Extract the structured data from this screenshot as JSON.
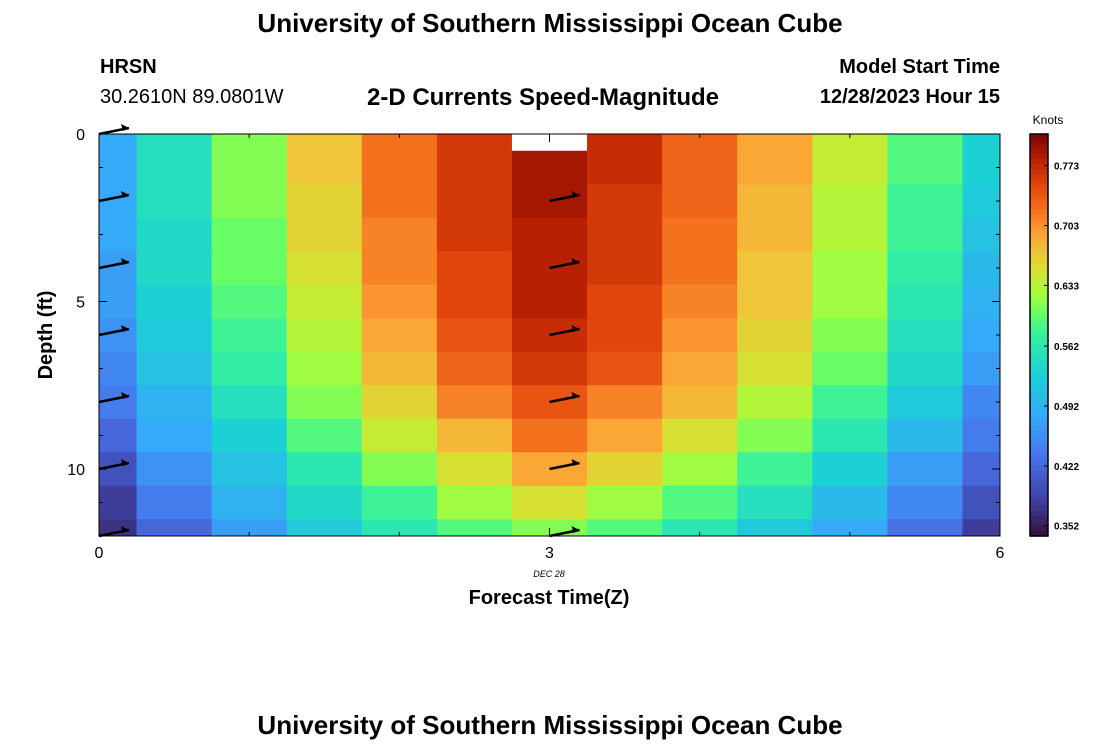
{
  "header": {
    "title_top": "University of Southern Mississippi Ocean Cube",
    "title_bottom": "University of Southern Mississippi Ocean Cube",
    "station": "HRSN",
    "coords": "30.2610N  89.0801W",
    "subtitle": "2-D Currents Speed-Magnitude",
    "model_start_label": "Model Start Time",
    "model_start_value": "12/28/2023 Hour 15"
  },
  "colors": {
    "arrow": "#000000",
    "missing": "#ffffff"
  },
  "chart_data": {
    "type": "heatmap",
    "xlabel": "Forecast Time(Z)",
    "ylabel": "Depth (ft)",
    "x_date_label": "DEC 28",
    "colorbar_label": "Knots",
    "colorbar_ticks": [
      "0.773",
      "0.703",
      "0.633",
      "0.562",
      "0.492",
      "0.422",
      "0.352"
    ],
    "colorbar_range": [
      0.34,
      0.81
    ],
    "xlim": [
      0,
      6
    ],
    "ylim": [
      0,
      12
    ],
    "y_inverted": true,
    "x_ticks": [
      "0",
      "3",
      "6"
    ],
    "y_ticks": [
      "0",
      "5",
      "10"
    ],
    "x": [
      0,
      0.5,
      1,
      1.5,
      2,
      2.5,
      3,
      3.5,
      4,
      4.5,
      5,
      5.5,
      6
    ],
    "depth": [
      0,
      1,
      2,
      3,
      4,
      5,
      6,
      7,
      8,
      9,
      10,
      11,
      12
    ],
    "values": [
      [
        0.48,
        0.55,
        0.61,
        0.67,
        0.72,
        0.76,
        null,
        0.77,
        0.73,
        0.69,
        0.64,
        0.59,
        0.53
      ],
      [
        0.48,
        0.55,
        0.61,
        0.67,
        0.72,
        0.76,
        0.79,
        0.77,
        0.73,
        0.69,
        0.64,
        0.59,
        0.53
      ],
      [
        0.48,
        0.55,
        0.61,
        0.66,
        0.72,
        0.76,
        0.79,
        0.76,
        0.73,
        0.68,
        0.63,
        0.58,
        0.52
      ],
      [
        0.48,
        0.54,
        0.6,
        0.66,
        0.71,
        0.76,
        0.78,
        0.76,
        0.72,
        0.68,
        0.63,
        0.58,
        0.51
      ],
      [
        0.47,
        0.54,
        0.6,
        0.65,
        0.71,
        0.75,
        0.78,
        0.76,
        0.72,
        0.67,
        0.62,
        0.57,
        0.5
      ],
      [
        0.47,
        0.53,
        0.59,
        0.64,
        0.7,
        0.75,
        0.78,
        0.75,
        0.71,
        0.67,
        0.62,
        0.56,
        0.49
      ],
      [
        0.46,
        0.52,
        0.58,
        0.63,
        0.69,
        0.74,
        0.77,
        0.75,
        0.7,
        0.66,
        0.61,
        0.55,
        0.48
      ],
      [
        0.45,
        0.51,
        0.57,
        0.62,
        0.68,
        0.73,
        0.76,
        0.74,
        0.69,
        0.65,
        0.6,
        0.54,
        0.47
      ],
      [
        0.44,
        0.49,
        0.55,
        0.61,
        0.66,
        0.71,
        0.74,
        0.71,
        0.68,
        0.63,
        0.58,
        0.52,
        0.45
      ],
      [
        0.42,
        0.48,
        0.53,
        0.59,
        0.64,
        0.68,
        0.72,
        0.69,
        0.65,
        0.61,
        0.56,
        0.5,
        0.44
      ],
      [
        0.4,
        0.46,
        0.51,
        0.56,
        0.61,
        0.65,
        0.69,
        0.66,
        0.62,
        0.58,
        0.53,
        0.47,
        0.42
      ],
      [
        0.38,
        0.44,
        0.49,
        0.54,
        0.58,
        0.62,
        0.65,
        0.62,
        0.59,
        0.55,
        0.5,
        0.45,
        0.4
      ],
      [
        0.37,
        0.42,
        0.47,
        0.52,
        0.56,
        0.59,
        0.61,
        0.59,
        0.56,
        0.52,
        0.48,
        0.43,
        0.38
      ]
    ],
    "vectors": [
      {
        "x": 0,
        "depth": 0
      },
      {
        "x": 0,
        "depth": 2
      },
      {
        "x": 0,
        "depth": 4
      },
      {
        "x": 0,
        "depth": 6
      },
      {
        "x": 0,
        "depth": 8
      },
      {
        "x": 0,
        "depth": 10
      },
      {
        "x": 0,
        "depth": 12
      },
      {
        "x": 3,
        "depth": 2
      },
      {
        "x": 3,
        "depth": 4
      },
      {
        "x": 3,
        "depth": 6
      },
      {
        "x": 3,
        "depth": 8
      },
      {
        "x": 3,
        "depth": 10
      },
      {
        "x": 3,
        "depth": 12
      }
    ]
  }
}
